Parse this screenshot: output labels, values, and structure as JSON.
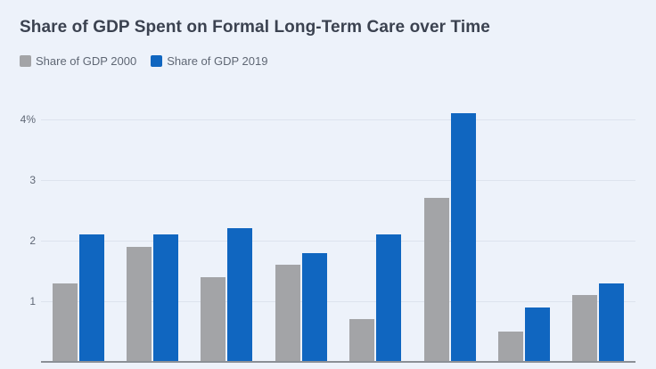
{
  "header": {
    "title": "Share of GDP Spent on Formal Long-Term Care over Time"
  },
  "legend": {
    "items": [
      {
        "label": "Share of GDP 2000",
        "color": "#a3a4a7"
      },
      {
        "label": "Share of GDP 2019",
        "color": "#1066c0"
      }
    ]
  },
  "chart_data": {
    "type": "bar",
    "title": "Share of GDP Spent on Formal Long-Term Care over Time",
    "groups": 8,
    "series": [
      {
        "name": "Share of GDP 2000",
        "color": "#a3a4a7",
        "values": [
          1.3,
          1.9,
          1.4,
          1.6,
          0.7,
          2.7,
          0.5,
          1.1
        ]
      },
      {
        "name": "Share of GDP 2019",
        "color": "#1066c0",
        "values": [
          2.1,
          2.1,
          2.2,
          1.8,
          2.1,
          4.1,
          0.9,
          1.3
        ]
      }
    ],
    "ylabel": "",
    "xlabel": "",
    "ylim": [
      0,
      4.35
    ],
    "yticks": [
      {
        "value": 4,
        "label": "4%"
      },
      {
        "value": 3,
        "label": "3"
      },
      {
        "value": 2,
        "label": "2"
      },
      {
        "value": 1,
        "label": "1"
      }
    ],
    "grid": true,
    "legend_position": "top-left"
  },
  "colors": {
    "background": "#edf2fa",
    "grid": "#dde3ee",
    "axis": "#8b9096",
    "title_text": "#3b4250",
    "legend_text": "#5f6774",
    "tick_text": "#606876"
  }
}
